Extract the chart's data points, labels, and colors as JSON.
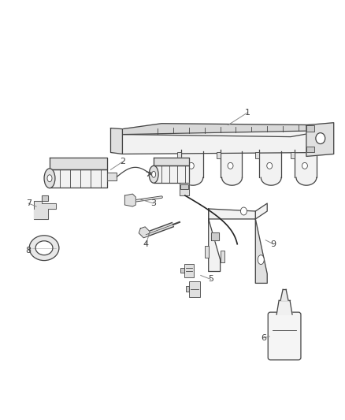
{
  "background_color": "#ffffff",
  "fig_width": 4.38,
  "fig_height": 5.33,
  "dpi": 100,
  "line_color": "#444444",
  "label_color": "#444444",
  "label_fontsize": 8,
  "leader_color": "#888888"
}
